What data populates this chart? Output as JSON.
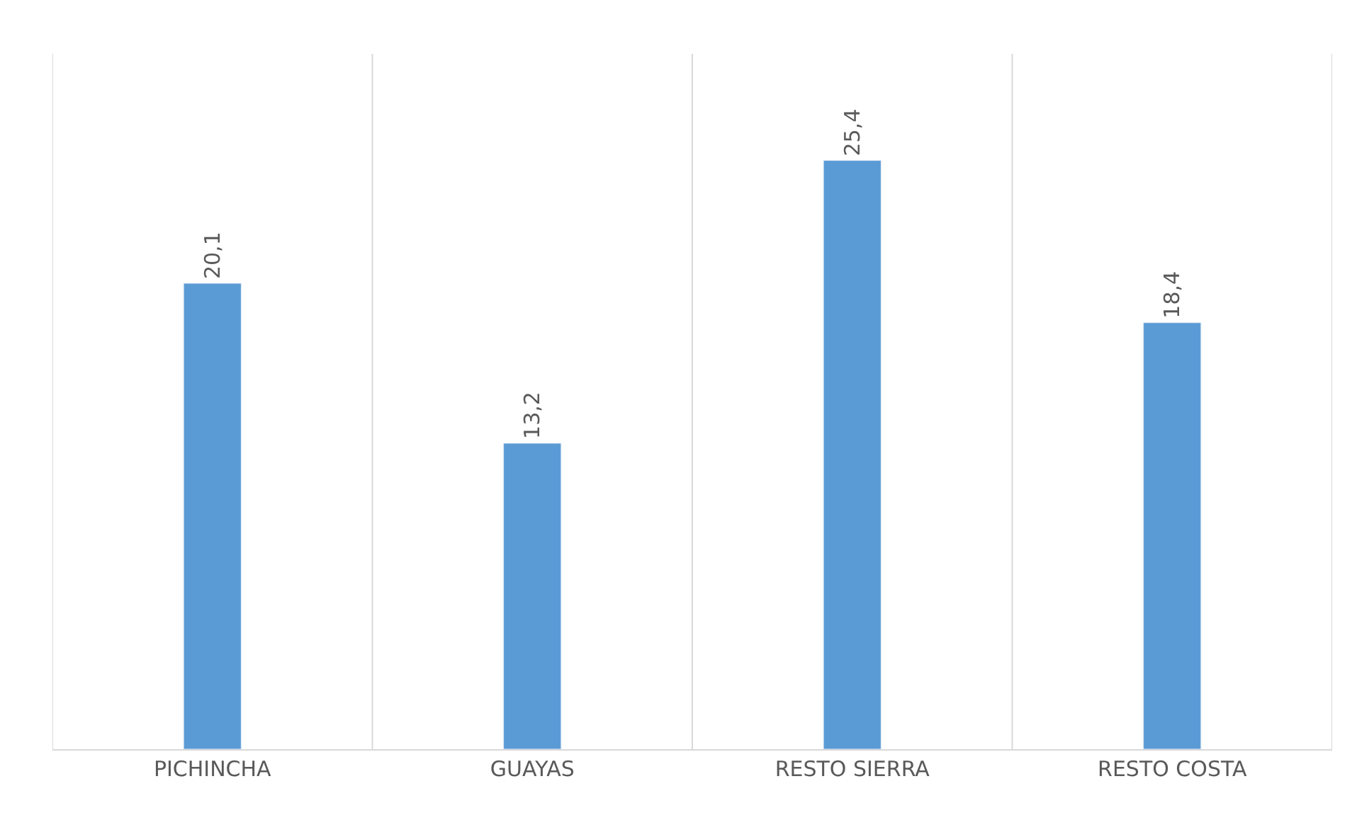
{
  "chart_data": {
    "type": "bar",
    "categories": [
      "PICHINCHA",
      "GUAYAS",
      "RESTO SIERRA",
      "RESTO COSTA"
    ],
    "values": [
      20.1,
      13.2,
      25.4,
      18.4
    ],
    "value_labels": [
      "20,1",
      "13,2",
      "25,4",
      "18,4"
    ],
    "color": "#5b9bd5",
    "ylim": [
      0,
      30
    ],
    "tick_labels": "x",
    "grid": "x"
  }
}
